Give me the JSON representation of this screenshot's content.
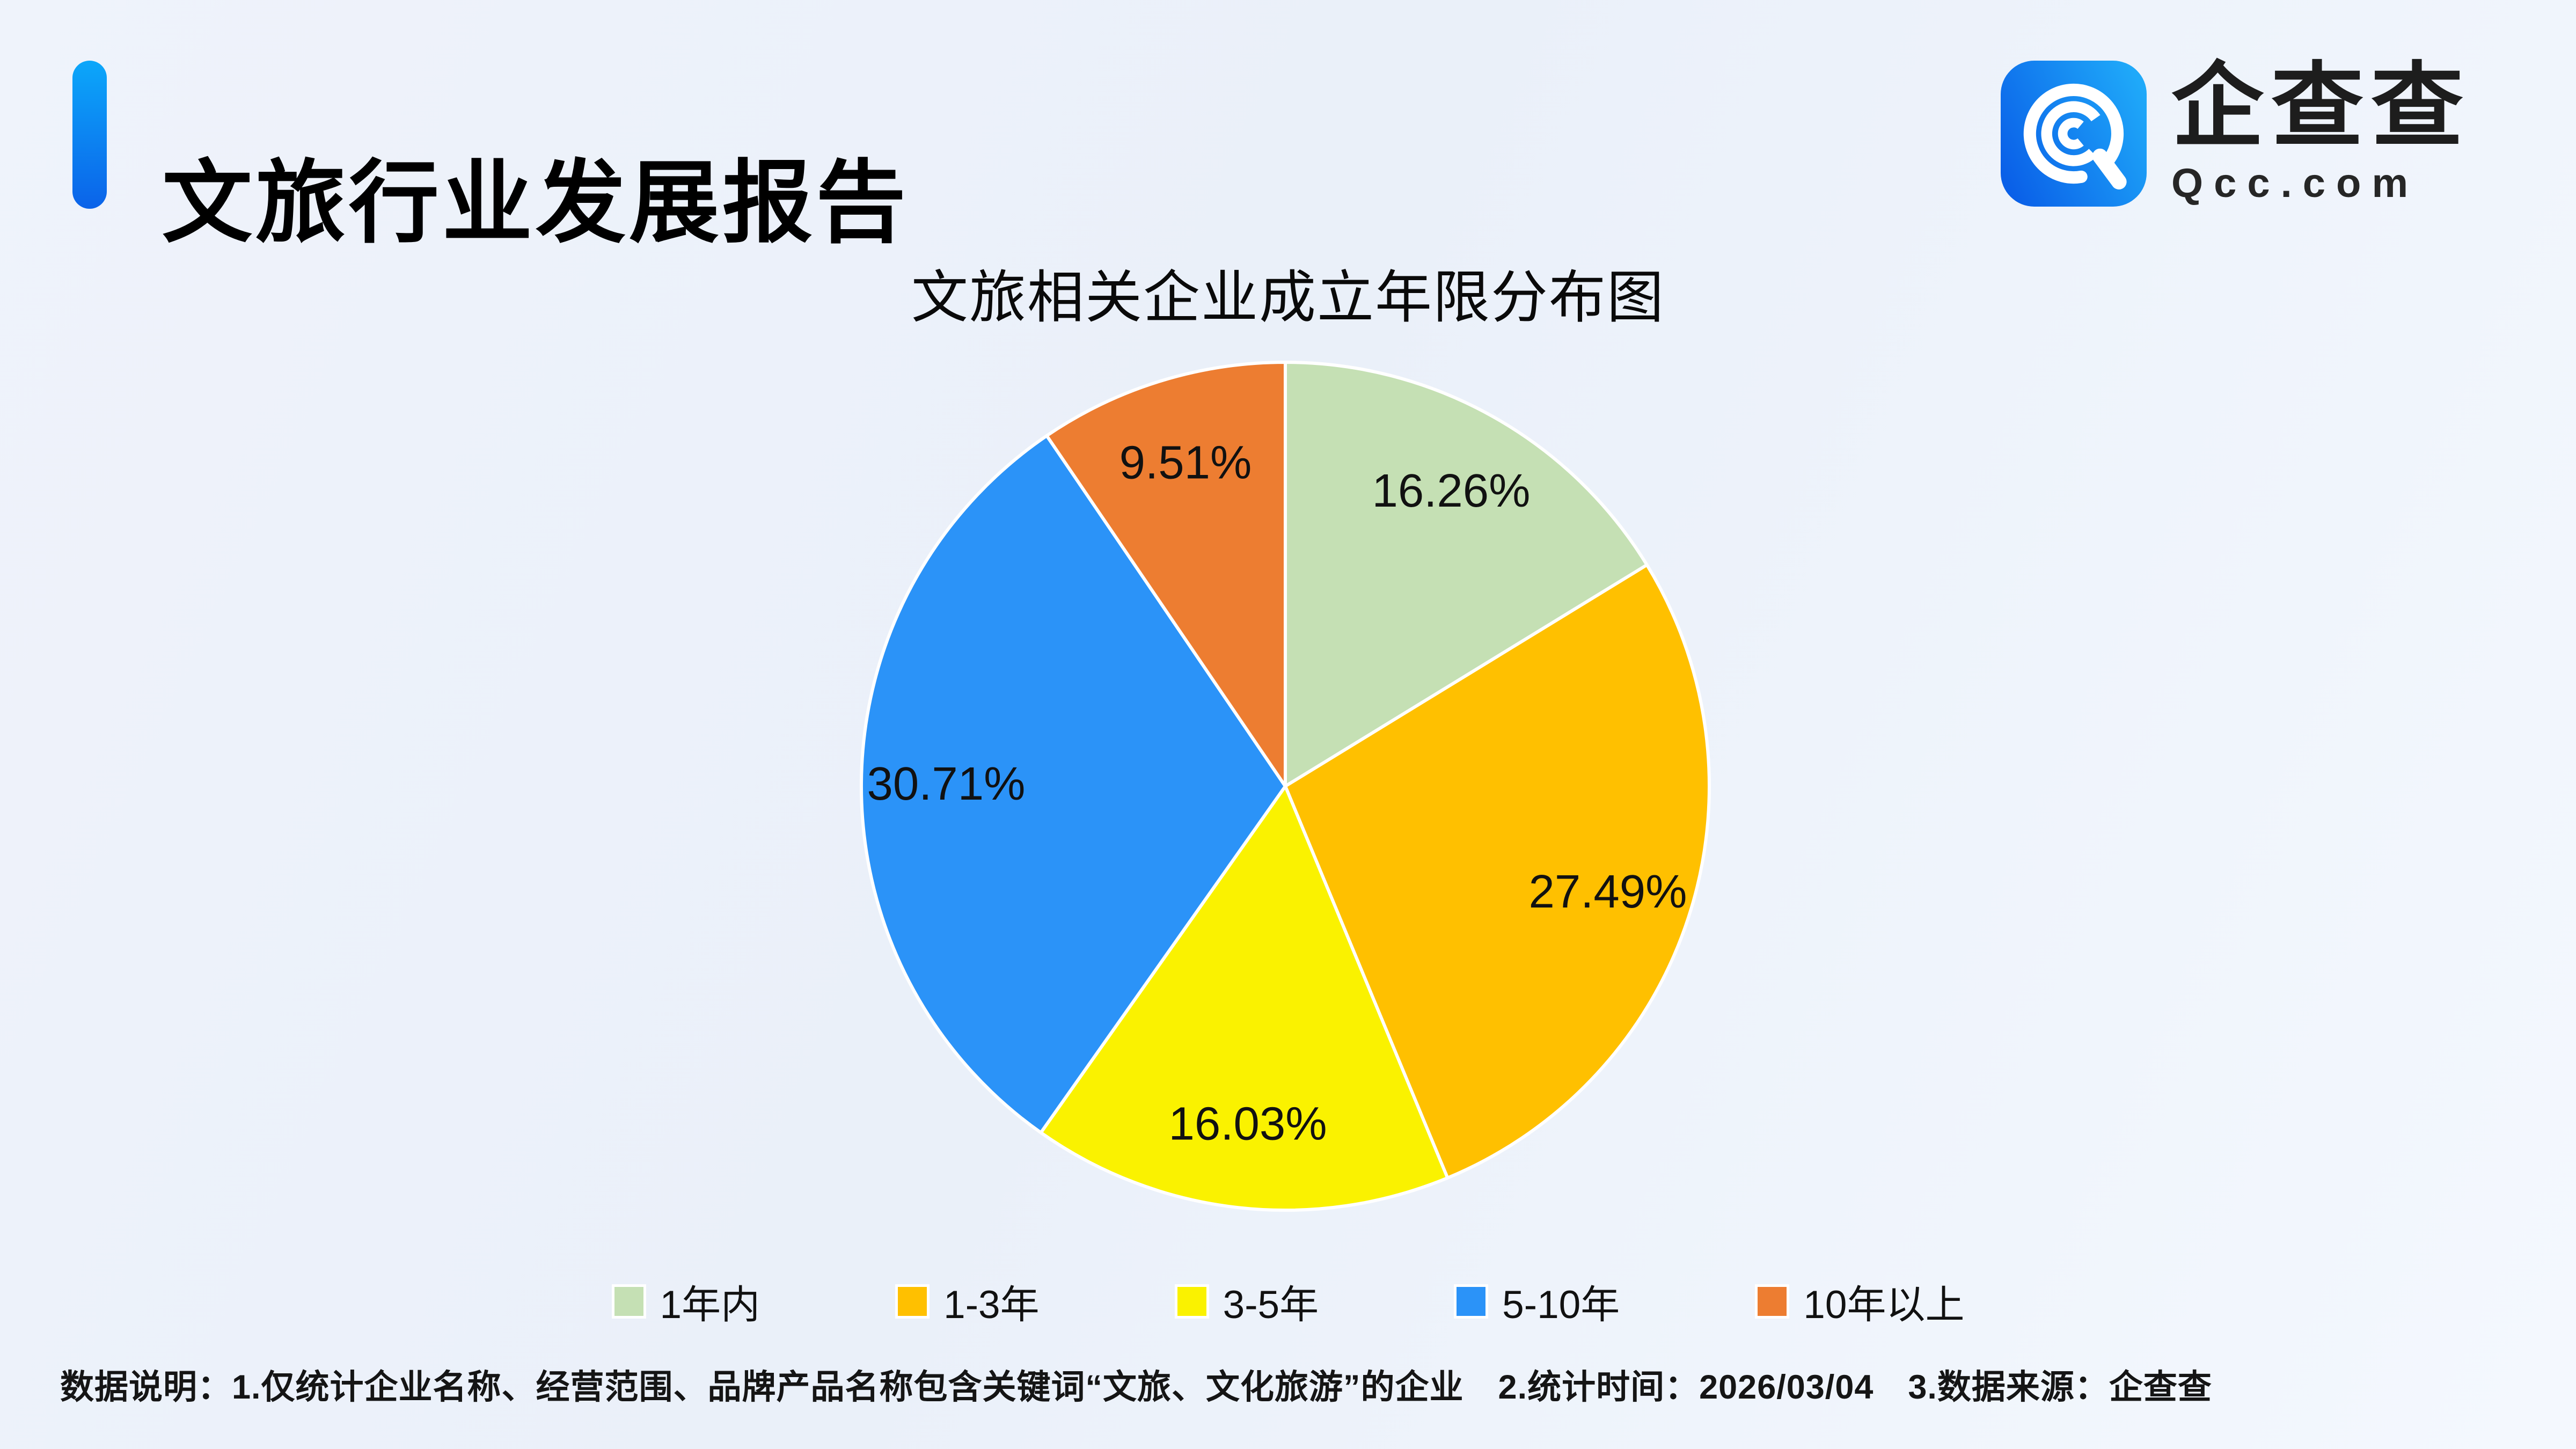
{
  "page": {
    "header": {
      "title": "文旅行业发展报告"
    },
    "brand": {
      "name": "企查查",
      "domain": "Qcc.com",
      "icon": "qcc-magnifier-logo"
    },
    "footer": {
      "text": "数据说明：1.仅统计企业名称、经营范围、品牌产品名称包含关键词“文旅、文化旅游”的企业　2.统计时间：2026/03/04　3.数据来源：企查查"
    }
  },
  "chart_data": {
    "type": "pie",
    "title": "文旅相关企业成立年限分布图",
    "categories": [
      "1年内",
      "1-3年",
      "3-5年",
      "5-10年",
      "10年以上"
    ],
    "values": [
      16.26,
      27.49,
      16.03,
      30.71,
      9.51
    ],
    "labels": [
      "16.26%",
      "27.49%",
      "16.03%",
      "30.71%",
      "9.51%"
    ],
    "colors": [
      "#C5E0B4",
      "#FFC000",
      "#FAF200",
      "#2B93F8",
      "#ED7D31"
    ],
    "unit": "%",
    "start_angle": "top",
    "direction": "clockwise",
    "label_position": "inside",
    "legend_position": "bottom",
    "slice_border_color": "#FFFFFF"
  },
  "theme": {
    "background_start": "#EFF3FB",
    "background_end": "#F4F8FE",
    "accent_bar_top": "#0CA7FA",
    "accent_bar_bottom": "#0B63E9",
    "logo_gradient_start": "#0A60E8",
    "logo_gradient_end": "#1FA9F9",
    "text_color": "#111111"
  }
}
